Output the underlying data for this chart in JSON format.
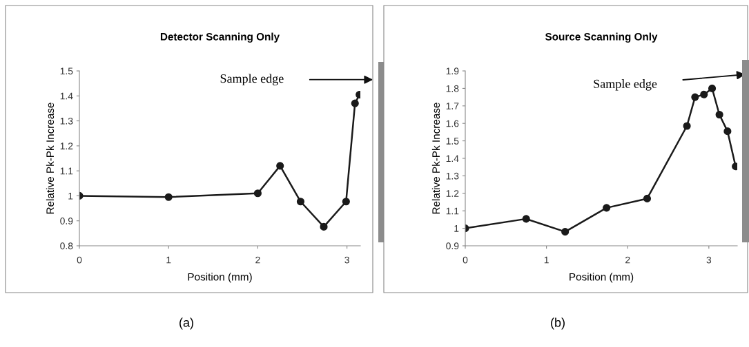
{
  "chart_data": [
    {
      "type": "line",
      "title": "Detector Scanning Only",
      "xlabel": "Position (mm)",
      "ylabel": "Relative Pk-Pk Increase",
      "x": [
        0,
        1,
        2,
        2.25,
        2.48,
        2.74,
        2.99,
        3.09,
        3.14
      ],
      "series": [
        {
          "color": "#1a1a1a",
          "values": [
            1.0,
            0.995,
            1.01,
            1.12,
            0.977,
            0.876,
            0.977,
            1.37,
            1.405
          ]
        }
      ],
      "xlim": [
        0,
        3.15
      ],
      "ylim": [
        0.8,
        1.5
      ],
      "xticks": [
        0,
        1,
        2,
        3
      ],
      "yticks": [
        0.8,
        0.9,
        1,
        1.1,
        1.2,
        1.3,
        1.4,
        1.5
      ],
      "marker": "circle",
      "line_style": "solid",
      "grid": false,
      "legend": false,
      "annotations": [
        "Sample edge",
        "(a)"
      ]
    },
    {
      "type": "line",
      "title": "Source Scanning Only",
      "xlabel": "Position (mm)",
      "ylabel": "Relative Pk-Pk Increase",
      "x": [
        0,
        0.75,
        1.23,
        1.74,
        2.24,
        2.73,
        2.83,
        2.94,
        3.04,
        3.13,
        3.23,
        3.33
      ],
      "series": [
        {
          "color": "#1a1a1a",
          "values": [
            1.0,
            1.054,
            0.98,
            1.117,
            1.17,
            1.585,
            1.75,
            1.765,
            1.8,
            1.65,
            1.555,
            1.354
          ]
        }
      ],
      "xlim": [
        0,
        3.35
      ],
      "ylim": [
        0.9,
        1.9
      ],
      "xticks": [
        0,
        1,
        2,
        3
      ],
      "yticks": [
        0.9,
        1,
        1.1,
        1.2,
        1.3,
        1.4,
        1.5,
        1.6,
        1.7,
        1.8,
        1.9
      ],
      "marker": "circle",
      "line_style": "solid",
      "grid": false,
      "legend": false,
      "annotations": [
        "Sample edge",
        "(b)"
      ]
    }
  ]
}
